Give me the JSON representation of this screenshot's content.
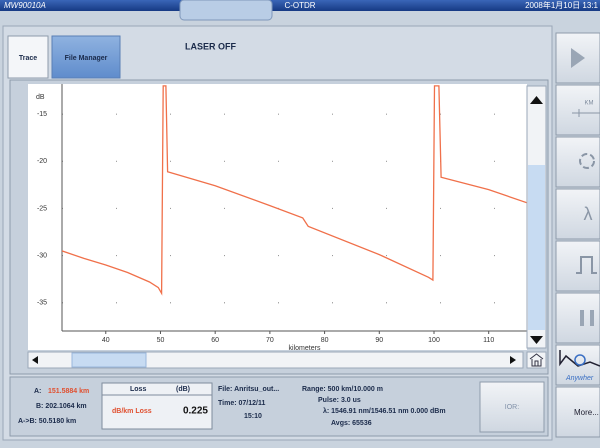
{
  "title_bar": {
    "model": "MW90010A",
    "app": "C-OTDR",
    "datetime": "2008年1月10日 13:1"
  },
  "tabs": [
    "Trace",
    "File Manager"
  ],
  "status": "LASER OFF",
  "side_buttons": {
    "units": "KM",
    "wavelength": "λ",
    "anywhere": "Anywher",
    "more": "More..."
  },
  "trace": {
    "y_unit": "dB",
    "x_label": "kilometers",
    "xlim": [
      32,
      117
    ],
    "ylim": [
      -38,
      -11.8
    ],
    "xticks": [
      40,
      50,
      60,
      70,
      80,
      90,
      100,
      110
    ],
    "yticks": [
      -15,
      -20,
      -25,
      -30,
      -35
    ],
    "color": "#f0704a",
    "x": [
      32,
      36,
      40,
      44,
      48,
      49.6,
      50.2,
      50.5,
      51,
      51.3,
      60,
      70,
      76,
      77,
      90,
      99,
      99.8,
      100.1,
      100.9,
      101.3,
      110,
      117
    ],
    "values": [
      -29.5,
      -30.3,
      -31,
      -31.8,
      -32.8,
      -33.4,
      -34,
      -12,
      -12,
      -21.1,
      -22.6,
      -24.7,
      -26,
      -26.9,
      -29.9,
      -32.3,
      -32.6,
      -12,
      -12,
      -21.7,
      -23,
      -24.4
    ]
  },
  "markers": {
    "a_label": "A:",
    "a_value": "151.5884 km",
    "b": "B: 202.1064 km",
    "ab": "A->B: 50.5180 km"
  },
  "loss": {
    "header": "Loss",
    "unit": "(dB)",
    "label": "dB/km Loss",
    "value": 0.225
  },
  "file_info": [
    "File: Anritsu_out...",
    "Time: 07/12/11",
    "15:10"
  ],
  "settings": [
    "Range: 500 km/10.000 m",
    "Pulse: 3.0 us",
    "λ: 1546.91 nm/1546.51 nm 0.000 dBm",
    "Avgs: 65536"
  ],
  "ior": "IOR:"
}
